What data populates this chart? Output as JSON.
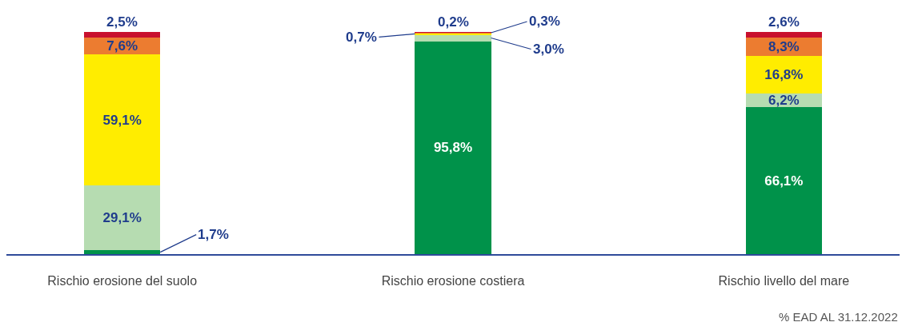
{
  "chart_data": {
    "type": "bar",
    "stacked": true,
    "categories": [
      "Rischio erosione del suolo",
      "Rischio erosione costiera",
      "Rischio livello del mare"
    ],
    "series": [
      {
        "color": "#00924a",
        "values": [
          1.7,
          95.8,
          66.1
        ],
        "value_labels": [
          "1,7%",
          "95,8%",
          "66,1%"
        ]
      },
      {
        "color": "#b6dcb1",
        "values": [
          29.1,
          3.0,
          6.2
        ],
        "value_labels": [
          "29,1%",
          "3,0%",
          "6,2%"
        ]
      },
      {
        "color": "#ffed00",
        "values": [
          59.1,
          0.7,
          16.8
        ],
        "value_labels": [
          "59,1%",
          "0,7%",
          "16,8%"
        ]
      },
      {
        "color": "#ec7c30",
        "values": [
          7.6,
          0.3,
          8.3
        ],
        "value_labels": [
          "7,6%",
          "0,3%",
          "8,3%"
        ]
      },
      {
        "color": "#c8102e",
        "values": [
          2.5,
          0.2,
          2.6
        ],
        "value_labels": [
          "2,5%",
          "0,2%",
          "2,6%"
        ]
      }
    ],
    "annotations": [
      "% EAD AL 31.12.2022"
    ]
  }
}
